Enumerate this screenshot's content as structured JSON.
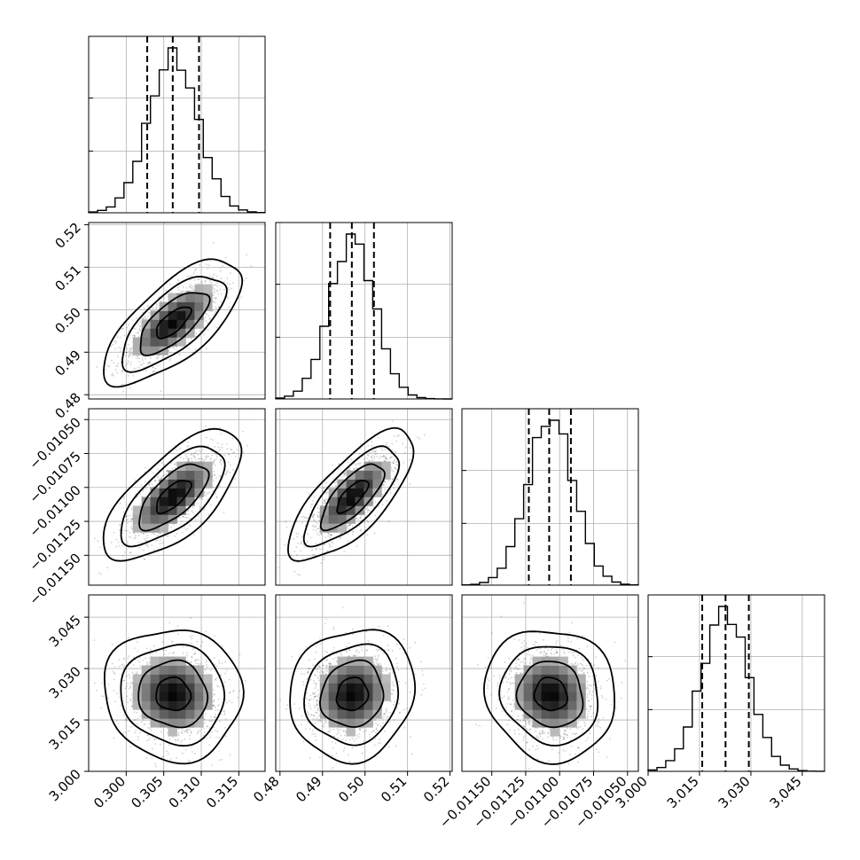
{
  "chart_data": {
    "type": "corner",
    "parameters": [
      {
        "range": [
          0.295,
          0.3185
        ],
        "mean": 0.30625,
        "sd": 0.00325,
        "quantiles": [
          0.3028,
          0.3062,
          0.3097
        ],
        "ticks": [
          0.3,
          0.305,
          0.31,
          0.315
        ],
        "tick_labels": [
          "0.300",
          "0.305",
          "0.310",
          "0.315"
        ]
      },
      {
        "range": [
          0.479,
          0.5205
        ],
        "mean": 0.497,
        "sd": 0.0052,
        "quantiles": [
          0.4918,
          0.4969,
          0.5021
        ],
        "ticks": [
          0.48,
          0.49,
          0.5,
          0.51,
          0.52
        ],
        "tick_labels": [
          "0.48",
          "0.49",
          "0.50",
          "0.51",
          "0.52"
        ]
      },
      {
        "range": [
          -0.01172,
          -0.01042
        ],
        "mean": -0.011065,
        "sd": 0.00017,
        "quantiles": [
          -0.011227,
          -0.011077,
          -0.010917
        ],
        "ticks": [
          -0.0115,
          -0.01125,
          -0.011,
          -0.01075,
          -0.0105
        ],
        "tick_labels": [
          "−0.01150",
          "−0.01125",
          "−0.01100",
          "−0.01075",
          "−0.01050"
        ]
      },
      {
        "range": [
          3.0,
          3.0515
        ],
        "mean": 3.0225,
        "sd": 0.0068,
        "quantiles": [
          3.0158,
          3.0226,
          3.0294
        ],
        "ticks": [
          3.0,
          3.015,
          3.03,
          3.045
        ],
        "tick_labels": [
          "3.000",
          "3.015",
          "3.030",
          "3.045"
        ]
      }
    ],
    "correlations": {
      "0-1": 0.7,
      "0-2": 0.68,
      "0-3": -0.05,
      "1-2": 0.74,
      "1-3": 0.1,
      "2-3": -0.08
    },
    "histogram_bins": 20,
    "levels_sigma": [
      0.5,
      1.0,
      1.5,
      2.0
    ],
    "show_titles": false,
    "grid": true,
    "axis_labels": [
      "",
      "",
      "",
      ""
    ]
  }
}
